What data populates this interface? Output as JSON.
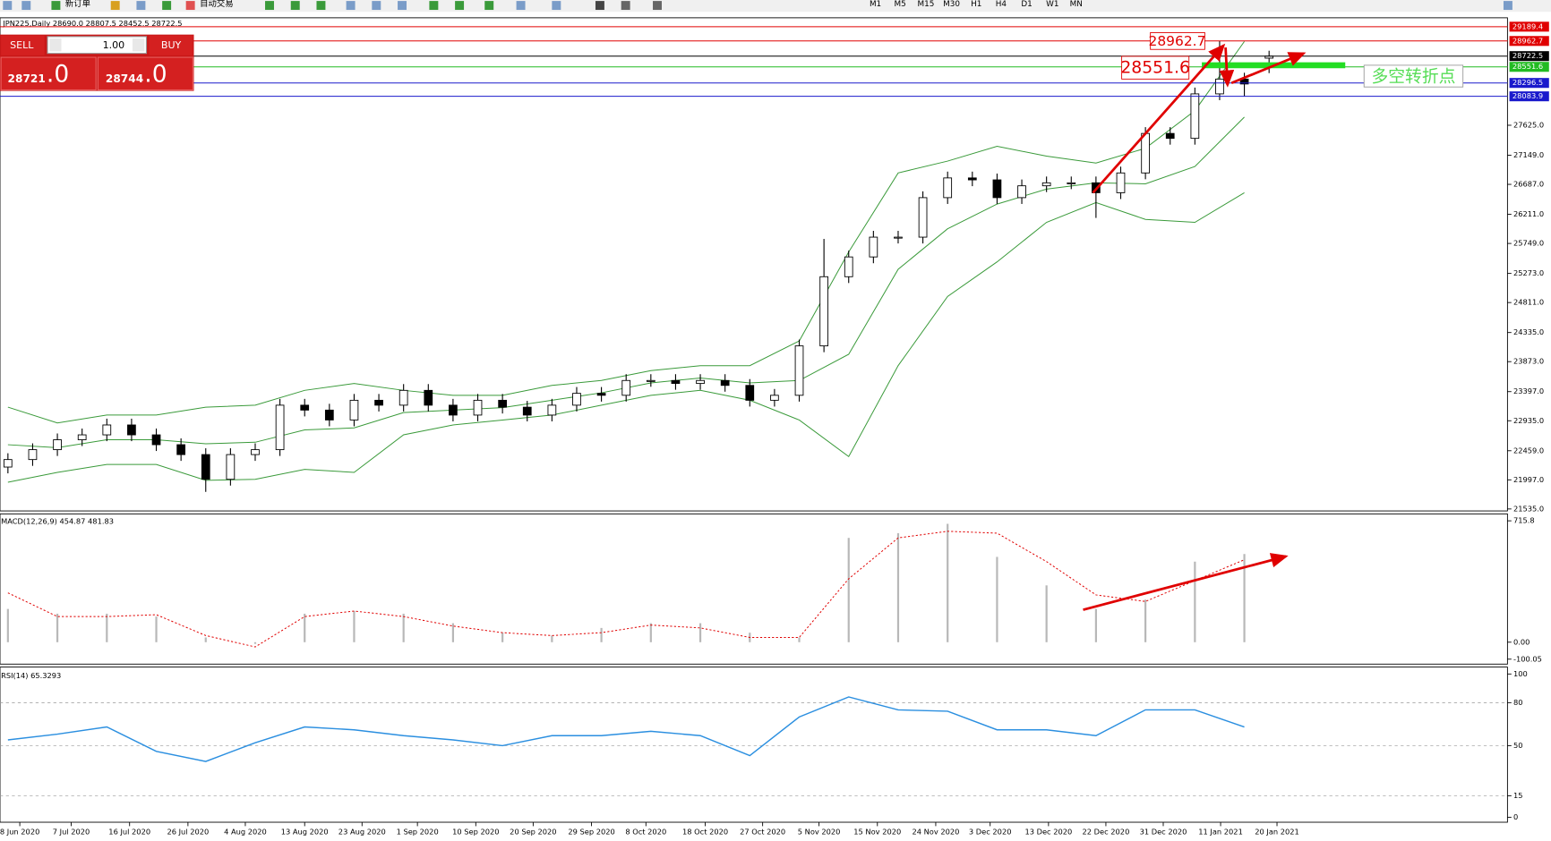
{
  "toolbar": {
    "new_order": "新订单",
    "auto_trading": "自动交易",
    "timeframes": [
      "M1",
      "M5",
      "M15",
      "M30",
      "H1",
      "H4",
      "D1",
      "W1",
      "MN"
    ]
  },
  "trade_panel": {
    "sell": "SELL",
    "volume": "1.00",
    "buy": "BUY",
    "bid_main": "28721",
    "bid_frac": ".0",
    "ask_main": "28744",
    "ask_frac": ".0"
  },
  "chart_data": [
    {
      "type": "candlestick",
      "title": "JPN225,Daily  28690.0 28807.5 28452.5 28722.5",
      "up_color": "#ffffff",
      "down_color": "#000000",
      "outline_color": "#000000",
      "open": [
        22200,
        22319,
        22476,
        22633,
        22711,
        22868,
        22711,
        22555,
        22398,
        22006,
        22398,
        22476,
        23182,
        23104,
        22947,
        23260,
        23182,
        23417,
        23182,
        23025,
        23260,
        23150,
        23025,
        23182,
        23370,
        23339,
        23574,
        23574,
        23527,
        23574,
        23496,
        23260,
        23339,
        24123,
        25221,
        25535,
        25849,
        25849,
        26476,
        26789,
        26758,
        26476,
        26664,
        26711,
        26711,
        26554,
        26868,
        27495,
        27417,
        28123,
        28358,
        28690.0
      ],
      "high": [
        22419,
        22576,
        22733,
        22811,
        22968,
        22968,
        22811,
        22655,
        22498,
        22498,
        22576,
        23282,
        23282,
        23204,
        23360,
        23360,
        23517,
        23517,
        23282,
        23360,
        23360,
        23250,
        23282,
        23470,
        23470,
        23674,
        23674,
        23674,
        23674,
        23674,
        23596,
        23439,
        24223,
        25821,
        25635,
        25949,
        25949,
        26576,
        26889,
        26889,
        26858,
        26764,
        26811,
        26811,
        26811,
        26968,
        27595,
        27595,
        28223,
        28962.7,
        28458,
        28807.5
      ],
      "low": [
        22100,
        22219,
        22376,
        22533,
        22611,
        22611,
        22455,
        22298,
        21806,
        21906,
        22298,
        22376,
        23004,
        22847,
        22847,
        23082,
        23082,
        23082,
        22925,
        22925,
        23050,
        22925,
        22925,
        23082,
        23239,
        23239,
        23474,
        23427,
        23427,
        23396,
        23160,
        23160,
        23239,
        24023,
        25121,
        25435,
        25749,
        25749,
        26376,
        26658,
        26376,
        26376,
        26564,
        26611,
        26154,
        26454,
        26768,
        27317,
        27317,
        28023,
        28083.9,
        28452.5
      ],
      "close": [
        22319,
        22476,
        22633,
        22711,
        22868,
        22711,
        22555,
        22398,
        22006,
        22398,
        22476,
        23182,
        23104,
        22947,
        23260,
        23182,
        23417,
        23182,
        23025,
        23260,
        23150,
        23025,
        23182,
        23370,
        23339,
        23574,
        23574,
        23527,
        23574,
        23496,
        23260,
        23339,
        24123,
        25221,
        25535,
        25849,
        25849,
        26476,
        26789,
        26758,
        26476,
        26664,
        26711,
        26711,
        26554,
        26868,
        27495,
        27417,
        28123,
        28358,
        28280,
        28722.5
      ],
      "bands": {
        "color": "#3a9a3a",
        "x": [
          0,
          2,
          4,
          6,
          8,
          10,
          12,
          14,
          16,
          18,
          20,
          22,
          24,
          26,
          28,
          30,
          32,
          34,
          36,
          38,
          40,
          42,
          44,
          46,
          48,
          50
        ],
        "upper": [
          23151,
          22900,
          23025,
          23025,
          23151,
          23182,
          23417,
          23527,
          23417,
          23339,
          23339,
          23496,
          23574,
          23731,
          23809,
          23809,
          24201,
          25613,
          26868,
          27056,
          27291,
          27135,
          27025,
          27260,
          27856,
          28954
        ],
        "middle": [
          22555,
          22508,
          22633,
          22633,
          22571,
          22594,
          22790,
          22821,
          23064,
          23104,
          23143,
          23261,
          23378,
          23535,
          23613,
          23535,
          23574,
          23990,
          25339,
          25982,
          26374,
          26610,
          26711,
          26696,
          26970,
          27754
        ],
        "lower": [
          21958,
          22115,
          22241,
          22241,
          21990,
          22006,
          22162,
          22115,
          22711,
          22868,
          22947,
          23025,
          23182,
          23339,
          23417,
          23260,
          22947,
          22366,
          23809,
          24907,
          25456,
          26084,
          26397,
          26131,
          26084,
          26554
        ]
      },
      "levels": [
        {
          "value": 29189.4,
          "color": "#e00000"
        },
        {
          "value": 28962.7,
          "color": "#e00000"
        },
        {
          "value": 28722.5,
          "color": "#000000"
        },
        {
          "value": 28551.6,
          "color": "#22bb22"
        },
        {
          "value": 28296.5,
          "color": "#1a1acc"
        },
        {
          "value": 28083.9,
          "color": "#1a1acc"
        }
      ],
      "annotations": [
        "28962.7",
        "28551.6",
        "多空转折点"
      ],
      "ylim": [
        21535.0,
        29189.4
      ],
      "yticks": [
        {
          "value": 21535.0,
          "label": "21535.0"
        },
        {
          "value": 21997.0,
          "label": "21997.0"
        },
        {
          "value": 22459.0,
          "label": "22459.0"
        },
        {
          "value": 22935.0,
          "label": "22935.0"
        },
        {
          "value": 23397.0,
          "label": "23397.0"
        },
        {
          "value": 23873.0,
          "label": "23873.0"
        },
        {
          "value": 24335.0,
          "label": "24335.0"
        },
        {
          "value": 24811.0,
          "label": "24811.0"
        },
        {
          "value": 25273.0,
          "label": "25273.0"
        },
        {
          "value": 25749.0,
          "label": "25749.0"
        },
        {
          "value": 26211.0,
          "label": "26211.0"
        },
        {
          "value": 26687.0,
          "label": "26687.0"
        },
        {
          "value": 27149.0,
          "label": "27149.0"
        },
        {
          "value": 27625.0,
          "label": "27625.0"
        }
      ],
      "xlim": [
        -0.32,
        60.64
      ],
      "xticks": [
        {
          "value": 0.48,
          "label": "8 Jun 2020"
        },
        {
          "value": 2.56,
          "label": "7 Jul 2020"
        },
        {
          "value": 4.92,
          "label": "16 Jul 2020"
        },
        {
          "value": 7.28,
          "label": "26 Jul 2020"
        },
        {
          "value": 9.6,
          "label": "4 Aug 2020"
        },
        {
          "value": 12,
          "label": "13 Aug 2020"
        },
        {
          "value": 14.32,
          "label": "23 Aug 2020"
        },
        {
          "value": 16.56,
          "label": "1 Sep 2020"
        },
        {
          "value": 18.92,
          "label": "10 Sep 2020"
        },
        {
          "value": 21.24,
          "label": "20 Sep 2020"
        },
        {
          "value": 23.6,
          "label": "29 Sep 2020"
        },
        {
          "value": 25.8,
          "label": "8 Oct 2020"
        },
        {
          "value": 28.2,
          "label": "18 Oct 2020"
        },
        {
          "value": 30.52,
          "label": "27 Oct 2020"
        },
        {
          "value": 32.8,
          "label": "5 Nov 2020"
        },
        {
          "value": 35.16,
          "label": "15 Nov 2020"
        },
        {
          "value": 37.52,
          "label": "24 Nov 2020"
        },
        {
          "value": 39.72,
          "label": "3 Dec 2020"
        },
        {
          "value": 42.08,
          "label": "13 Dec 2020"
        },
        {
          "value": 44.4,
          "label": "22 Dec 2020"
        },
        {
          "value": 46.72,
          "label": "31 Dec 2020"
        },
        {
          "value": 49.04,
          "label": "11 Jan 2021"
        },
        {
          "value": 51.32,
          "label": "20 Jan 2021"
        }
      ]
    },
    {
      "type": "macd",
      "title": "MACD(12,26,9) 454.87 481.83",
      "x": [
        0,
        2,
        4,
        6,
        8,
        10,
        12,
        14,
        16,
        18,
        20,
        22,
        24,
        26,
        28,
        30,
        32,
        34,
        36,
        38,
        40,
        42,
        44,
        46,
        48,
        50
      ],
      "histogram": {
        "color": "#b8b8b8",
        "values": [
          196,
          168,
          168,
          151,
          28,
          -10,
          168,
          184,
          168,
          112,
          56,
          39,
          84,
          112,
          112,
          56,
          28,
          615,
          643,
          698,
          503,
          335,
          196,
          251,
          475,
          520
        ]
      },
      "signal": {
        "color": "#e00000",
        "values": [
          291,
          151,
          151,
          162,
          39,
          -28,
          151,
          184,
          151,
          95,
          56,
          39,
          56,
          101,
          84,
          28,
          28,
          374,
          615,
          654,
          643,
          475,
          279,
          240,
          363,
          486
        ]
      },
      "ylim": [
        -100.05,
        715.8
      ],
      "yticks": [
        {
          "value": -100.05,
          "label": "-100.05"
        },
        {
          "value": 0,
          "label": "0.00"
        },
        715.8
      ]
    },
    {
      "type": "line",
      "title": "RSI(14) 65.3293",
      "color": "#2b8fe0",
      "grid": true,
      "x": [
        0,
        2,
        4,
        6,
        8,
        10,
        12,
        14,
        16,
        18,
        20,
        22,
        24,
        26,
        28,
        30,
        32,
        34,
        36,
        38,
        40,
        42,
        44,
        46,
        48,
        50
      ],
      "values": [
        54,
        58,
        63,
        46,
        39,
        52,
        63,
        61,
        57,
        54,
        50,
        57,
        57,
        60,
        57,
        43,
        70,
        84,
        75,
        74,
        61,
        61,
        57,
        75,
        75,
        63
      ],
      "ylim": [
        0,
        100
      ],
      "yticks": [
        0,
        15,
        50,
        80,
        100
      ]
    }
  ]
}
